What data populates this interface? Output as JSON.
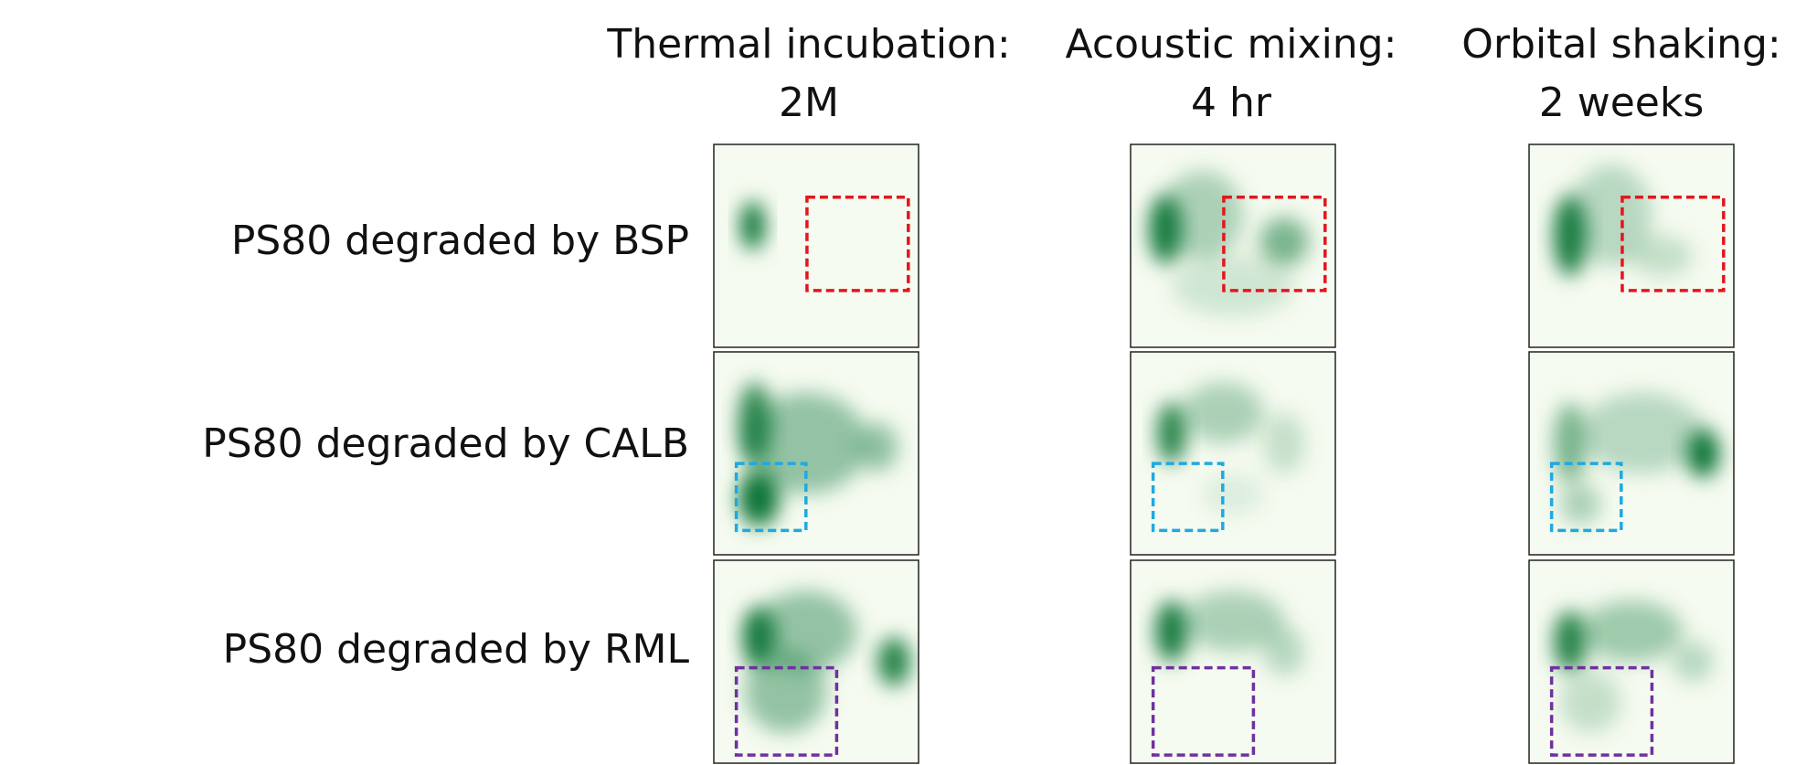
{
  "columns": [
    {
      "title": "Thermal incubation:",
      "subtitle": "2M"
    },
    {
      "title": "Acoustic mixing:",
      "subtitle": "4 hr"
    },
    {
      "title": "Orbital shaking:",
      "subtitle": "2 weeks"
    }
  ],
  "rows": [
    {
      "label": "PS80 degraded by BSP"
    },
    {
      "label": "PS80 degraded by CALB"
    },
    {
      "label": "PS80 degraded by RML"
    }
  ]
}
